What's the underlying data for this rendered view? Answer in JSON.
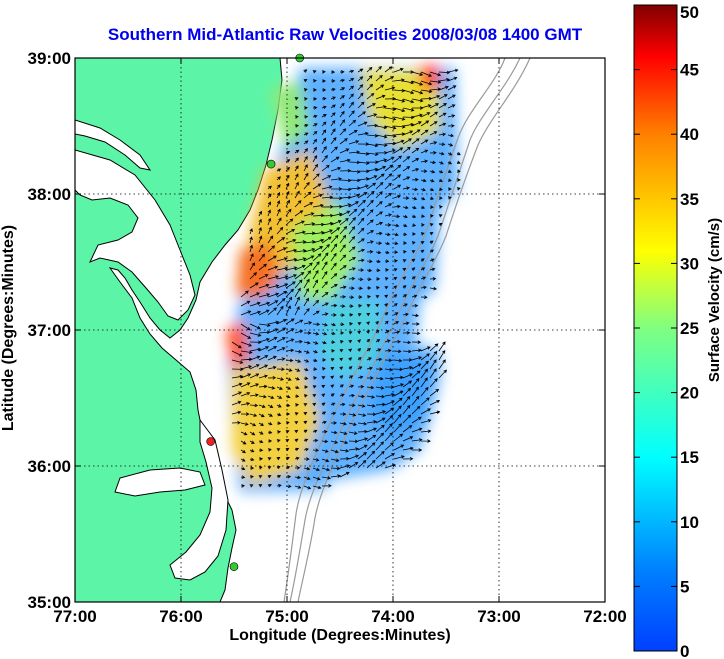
{
  "map": {
    "title": "Southern Mid-Atlantic Raw Velocities 2008/03/08 1400 GMT",
    "xlabel": "Longitude (Degrees:Minutes)",
    "ylabel": "Latitude (Degrees:Minutes)",
    "x_ticks": [
      "77:00",
      "76:00",
      "75:00",
      "74:00",
      "73:00",
      "72:00"
    ],
    "y_ticks": [
      "39:00",
      "38:00",
      "37:00",
      "36:00",
      "35:00"
    ],
    "lon_range": [
      -77,
      -72
    ],
    "lat_range": [
      35,
      39
    ],
    "grid": "dotted",
    "colors": {
      "land": "#5cf5a8",
      "water": "#ffffff",
      "coastline": "#000000",
      "bathymetry": "#9a9a9a",
      "title": "#0000ee",
      "arrow": "#000000"
    },
    "stations": [
      {
        "name": "station-north",
        "lon": -74.88,
        "lat": 39.0,
        "color": "#33cc33"
      },
      {
        "name": "station-mid",
        "lon": -75.15,
        "lat": 38.22,
        "color": "#33cc33"
      },
      {
        "name": "station-hatteras-north",
        "lon": -75.72,
        "lat": 36.18,
        "color": "#ee2222"
      },
      {
        "name": "station-south",
        "lon": -75.5,
        "lat": 35.26,
        "color": "#33cc33"
      }
    ]
  },
  "colorbar": {
    "label": "Surface Velocity (cm/s)",
    "ticks": [
      "50",
      "45",
      "40",
      "35",
      "30",
      "25",
      "20",
      "15",
      "10",
      "5",
      "0"
    ],
    "range": [
      0,
      50
    ],
    "colormap": "jet"
  }
}
